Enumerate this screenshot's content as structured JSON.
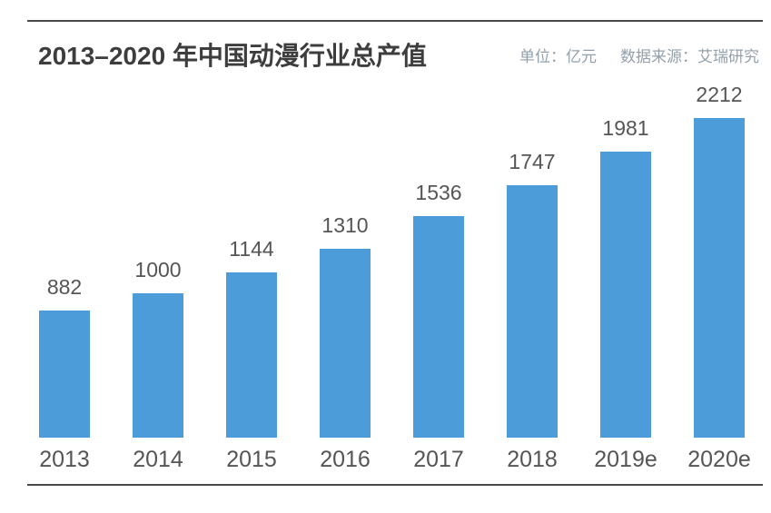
{
  "header": {
    "title": "2013–2020 年中国动漫行业总产值",
    "unit_label": "单位：亿元",
    "source_label": "数据来源：艾瑞研究"
  },
  "chart_data": {
    "type": "bar",
    "title": "2013–2020 年中国动漫行业总产值",
    "categories": [
      "2013",
      "2014",
      "2015",
      "2016",
      "2017",
      "2018",
      "2019e",
      "2020e"
    ],
    "values": [
      882,
      1000,
      1144,
      1310,
      1536,
      1747,
      1981,
      2212
    ],
    "unit": "亿元",
    "source": "艾瑞研究",
    "xlabel": "",
    "ylabel": "",
    "ylim": [
      0,
      2212
    ],
    "grid": false,
    "legend": false,
    "value_labels": true,
    "bar_color": "#4b9cd9",
    "label_color": "#555555",
    "title_color": "#3d3d3d",
    "meta_text_color": "#93a0ab",
    "rule_color": "#4a4a4a"
  }
}
